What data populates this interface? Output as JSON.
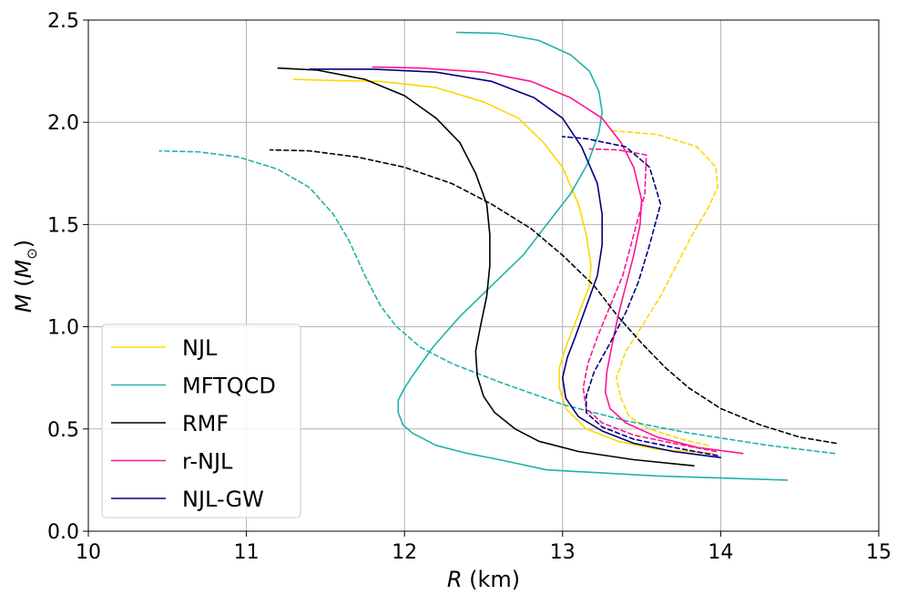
{
  "chart_data": {
    "type": "line",
    "title": "",
    "xlabel": {
      "symbol": "R",
      "unit": " (km)"
    },
    "ylabel": {
      "symbol": "M",
      "unit_open": " (",
      "unit_symbol": "M",
      "unit_sub": "⊙",
      "unit_close": ")"
    },
    "xlim": [
      10,
      15
    ],
    "ylim": [
      0,
      2.5
    ],
    "xticks": [
      10,
      11,
      12,
      13,
      14,
      15
    ],
    "yticks": [
      0.0,
      0.5,
      1.0,
      1.5,
      2.0,
      2.5
    ],
    "xtick_labels": [
      "10",
      "11",
      "12",
      "13",
      "14",
      "15"
    ],
    "ytick_labels": [
      "0.0",
      "0.5",
      "1.0",
      "1.5",
      "2.0",
      "2.5"
    ],
    "grid": true,
    "legend_position": "lower-left",
    "series": [
      {
        "name": "NJL",
        "color": "#FFD700",
        "dash": false,
        "in_legend": true,
        "points": [
          [
            13.95,
            0.38
          ],
          [
            13.6,
            0.4
          ],
          [
            13.35,
            0.44
          ],
          [
            13.15,
            0.5
          ],
          [
            13.02,
            0.6
          ],
          [
            12.98,
            0.7
          ],
          [
            12.98,
            0.8
          ],
          [
            13.02,
            0.9
          ],
          [
            13.07,
            1.0
          ],
          [
            13.12,
            1.1
          ],
          [
            13.17,
            1.2
          ],
          [
            13.18,
            1.3
          ],
          [
            13.15,
            1.45
          ],
          [
            13.1,
            1.6
          ],
          [
            13.0,
            1.78
          ],
          [
            12.88,
            1.9
          ],
          [
            12.72,
            2.02
          ],
          [
            12.5,
            2.1
          ],
          [
            12.2,
            2.17
          ],
          [
            11.85,
            2.2
          ],
          [
            11.5,
            2.205
          ],
          [
            11.3,
            2.21
          ]
        ]
      },
      {
        "name": "NJL",
        "color": "#FFD700",
        "dash": true,
        "in_legend": false,
        "points": [
          [
            13.92,
            0.42
          ],
          [
            13.75,
            0.45
          ],
          [
            13.55,
            0.5
          ],
          [
            13.42,
            0.56
          ],
          [
            13.37,
            0.65
          ],
          [
            13.34,
            0.75
          ],
          [
            13.4,
            0.88
          ],
          [
            13.5,
            1.0
          ],
          [
            13.62,
            1.15
          ],
          [
            13.72,
            1.3
          ],
          [
            13.82,
            1.45
          ],
          [
            13.92,
            1.58
          ],
          [
            13.98,
            1.68
          ],
          [
            13.97,
            1.78
          ],
          [
            13.85,
            1.88
          ],
          [
            13.6,
            1.94
          ],
          [
            13.3,
            1.96
          ]
        ]
      },
      {
        "name": "MFTQCD",
        "color": "#20B2AA",
        "dash": false,
        "in_legend": true,
        "points": [
          [
            14.42,
            0.25
          ],
          [
            13.6,
            0.27
          ],
          [
            12.9,
            0.3
          ],
          [
            12.6,
            0.35
          ],
          [
            12.4,
            0.38
          ],
          [
            12.2,
            0.42
          ],
          [
            12.05,
            0.48
          ],
          [
            11.99,
            0.52
          ],
          [
            11.96,
            0.58
          ],
          [
            11.96,
            0.64
          ],
          [
            12.0,
            0.7
          ],
          [
            12.05,
            0.76
          ],
          [
            12.18,
            0.9
          ],
          [
            12.35,
            1.05
          ],
          [
            12.55,
            1.2
          ],
          [
            12.75,
            1.35
          ],
          [
            12.9,
            1.5
          ],
          [
            13.05,
            1.65
          ],
          [
            13.16,
            1.8
          ],
          [
            13.23,
            1.95
          ],
          [
            13.25,
            2.05
          ],
          [
            13.23,
            2.15
          ],
          [
            13.17,
            2.25
          ],
          [
            13.05,
            2.33
          ],
          [
            12.85,
            2.4
          ],
          [
            12.6,
            2.435
          ],
          [
            12.33,
            2.44
          ]
        ]
      },
      {
        "name": "MFTQCD",
        "color": "#20B2AA",
        "dash": true,
        "in_legend": false,
        "points": [
          [
            14.72,
            0.38
          ],
          [
            14.3,
            0.42
          ],
          [
            13.8,
            0.48
          ],
          [
            13.4,
            0.54
          ],
          [
            13.0,
            0.62
          ],
          [
            12.6,
            0.73
          ],
          [
            12.3,
            0.82
          ],
          [
            12.1,
            0.9
          ],
          [
            11.95,
            1.0
          ],
          [
            11.85,
            1.1
          ],
          [
            11.75,
            1.25
          ],
          [
            11.65,
            1.42
          ],
          [
            11.55,
            1.55
          ],
          [
            11.4,
            1.68
          ],
          [
            11.2,
            1.77
          ],
          [
            10.95,
            1.83
          ],
          [
            10.7,
            1.855
          ],
          [
            10.45,
            1.86
          ]
        ]
      },
      {
        "name": "RMF",
        "color": "#000000",
        "dash": false,
        "in_legend": true,
        "points": [
          [
            13.83,
            0.32
          ],
          [
            13.45,
            0.35
          ],
          [
            13.1,
            0.39
          ],
          [
            12.85,
            0.44
          ],
          [
            12.7,
            0.5
          ],
          [
            12.57,
            0.58
          ],
          [
            12.5,
            0.66
          ],
          [
            12.46,
            0.76
          ],
          [
            12.45,
            0.88
          ],
          [
            12.48,
            1.0
          ],
          [
            12.52,
            1.15
          ],
          [
            12.54,
            1.3
          ],
          [
            12.54,
            1.45
          ],
          [
            12.52,
            1.6
          ],
          [
            12.45,
            1.75
          ],
          [
            12.35,
            1.9
          ],
          [
            12.2,
            2.02
          ],
          [
            12.0,
            2.13
          ],
          [
            11.75,
            2.21
          ],
          [
            11.45,
            2.255
          ],
          [
            11.2,
            2.265
          ]
        ]
      },
      {
        "name": "RMF",
        "color": "#000000",
        "dash": true,
        "in_legend": false,
        "points": [
          [
            14.73,
            0.43
          ],
          [
            14.5,
            0.46
          ],
          [
            14.25,
            0.52
          ],
          [
            14.0,
            0.6
          ],
          [
            13.8,
            0.7
          ],
          [
            13.65,
            0.8
          ],
          [
            13.5,
            0.92
          ],
          [
            13.35,
            1.05
          ],
          [
            13.2,
            1.2
          ],
          [
            13.0,
            1.35
          ],
          [
            12.8,
            1.48
          ],
          [
            12.55,
            1.6
          ],
          [
            12.3,
            1.7
          ],
          [
            12.0,
            1.78
          ],
          [
            11.7,
            1.83
          ],
          [
            11.4,
            1.86
          ],
          [
            11.15,
            1.865
          ]
        ]
      },
      {
        "name": "r-NJL",
        "color": "#FF1493",
        "dash": false,
        "in_legend": true,
        "points": [
          [
            14.14,
            0.38
          ],
          [
            13.85,
            0.41
          ],
          [
            13.6,
            0.46
          ],
          [
            13.4,
            0.53
          ],
          [
            13.3,
            0.6
          ],
          [
            13.27,
            0.68
          ],
          [
            13.28,
            0.78
          ],
          [
            13.31,
            0.9
          ],
          [
            13.35,
            1.05
          ],
          [
            13.4,
            1.2
          ],
          [
            13.45,
            1.35
          ],
          [
            13.49,
            1.5
          ],
          [
            13.5,
            1.62
          ],
          [
            13.45,
            1.78
          ],
          [
            13.37,
            1.9
          ],
          [
            13.25,
            2.02
          ],
          [
            13.05,
            2.12
          ],
          [
            12.8,
            2.2
          ],
          [
            12.5,
            2.245
          ],
          [
            12.1,
            2.265
          ],
          [
            11.8,
            2.27
          ]
        ]
      },
      {
        "name": "r-NJL",
        "color": "#FF1493",
        "dash": true,
        "in_legend": false,
        "points": [
          [
            13.97,
            0.39
          ],
          [
            13.7,
            0.43
          ],
          [
            13.45,
            0.47
          ],
          [
            13.25,
            0.53
          ],
          [
            13.15,
            0.6
          ],
          [
            13.13,
            0.7
          ],
          [
            13.16,
            0.82
          ],
          [
            13.22,
            0.95
          ],
          [
            13.3,
            1.1
          ],
          [
            13.38,
            1.25
          ],
          [
            13.45,
            1.45
          ],
          [
            13.52,
            1.65
          ],
          [
            13.53,
            1.84
          ],
          [
            13.35,
            1.865
          ],
          [
            13.17,
            1.87
          ]
        ]
      },
      {
        "name": "NJL-GW",
        "color": "#000080",
        "dash": false,
        "in_legend": true,
        "points": [
          [
            14.0,
            0.36
          ],
          [
            13.7,
            0.39
          ],
          [
            13.45,
            0.43
          ],
          [
            13.25,
            0.49
          ],
          [
            13.1,
            0.56
          ],
          [
            13.02,
            0.65
          ],
          [
            13.0,
            0.75
          ],
          [
            13.03,
            0.85
          ],
          [
            13.08,
            0.95
          ],
          [
            13.15,
            1.1
          ],
          [
            13.22,
            1.25
          ],
          [
            13.25,
            1.4
          ],
          [
            13.25,
            1.55
          ],
          [
            13.22,
            1.7
          ],
          [
            13.12,
            1.88
          ],
          [
            13.0,
            2.02
          ],
          [
            12.82,
            2.12
          ],
          [
            12.55,
            2.2
          ],
          [
            12.2,
            2.245
          ],
          [
            11.8,
            2.26
          ],
          [
            11.4,
            2.26
          ]
        ]
      },
      {
        "name": "NJL-GW",
        "color": "#000080",
        "dash": true,
        "in_legend": false,
        "points": [
          [
            13.98,
            0.37
          ],
          [
            13.7,
            0.41
          ],
          [
            13.45,
            0.45
          ],
          [
            13.25,
            0.51
          ],
          [
            13.15,
            0.58
          ],
          [
            13.15,
            0.66
          ],
          [
            13.2,
            0.78
          ],
          [
            13.3,
            0.92
          ],
          [
            13.4,
            1.07
          ],
          [
            13.48,
            1.22
          ],
          [
            13.55,
            1.4
          ],
          [
            13.62,
            1.6
          ],
          [
            13.55,
            1.78
          ],
          [
            13.4,
            1.88
          ],
          [
            13.15,
            1.92
          ],
          [
            13.0,
            1.93
          ]
        ]
      }
    ]
  }
}
